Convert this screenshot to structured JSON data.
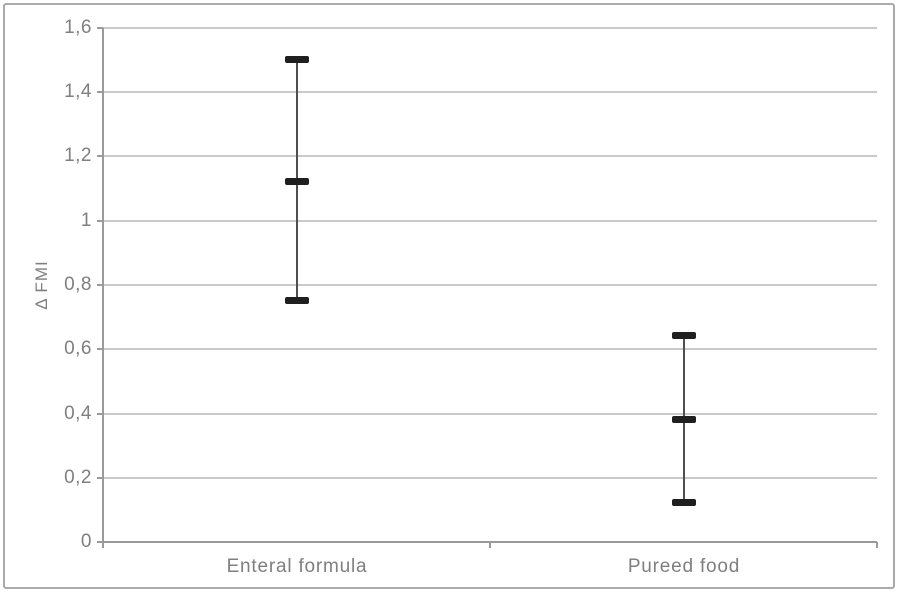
{
  "chart_data": {
    "type": "scatter",
    "subtype": "vertical high-mid-low error bars",
    "title": "",
    "xlabel": "",
    "ylabel": "Δ FMI",
    "ylim": [
      0,
      1.6
    ],
    "ytick_step": 0.2,
    "ytick_labels": [
      "0",
      "0,2",
      "0,4",
      "0,6",
      "0,8",
      "1",
      "1,2",
      "1,4",
      "1,6"
    ],
    "decimal_separator": ",",
    "grid": "horizontal",
    "legend_position": "none",
    "categories": [
      "Enteral formula",
      "Pureed food"
    ],
    "series": [
      {
        "name": "Enteral formula",
        "low": 0.75,
        "mid": 1.12,
        "high": 1.5
      },
      {
        "name": "Pureed food",
        "low": 0.12,
        "mid": 0.38,
        "high": 0.64
      }
    ],
    "colors": {
      "background": "#ffffff",
      "figure_border": "#aaaaaa",
      "gridline": "#c9c9c9",
      "axis": "#9a9a9a",
      "text": "#7f7f7f",
      "errorbar_line": "#4f4f4f",
      "errorbar_marker": "#1f1f1f"
    }
  }
}
